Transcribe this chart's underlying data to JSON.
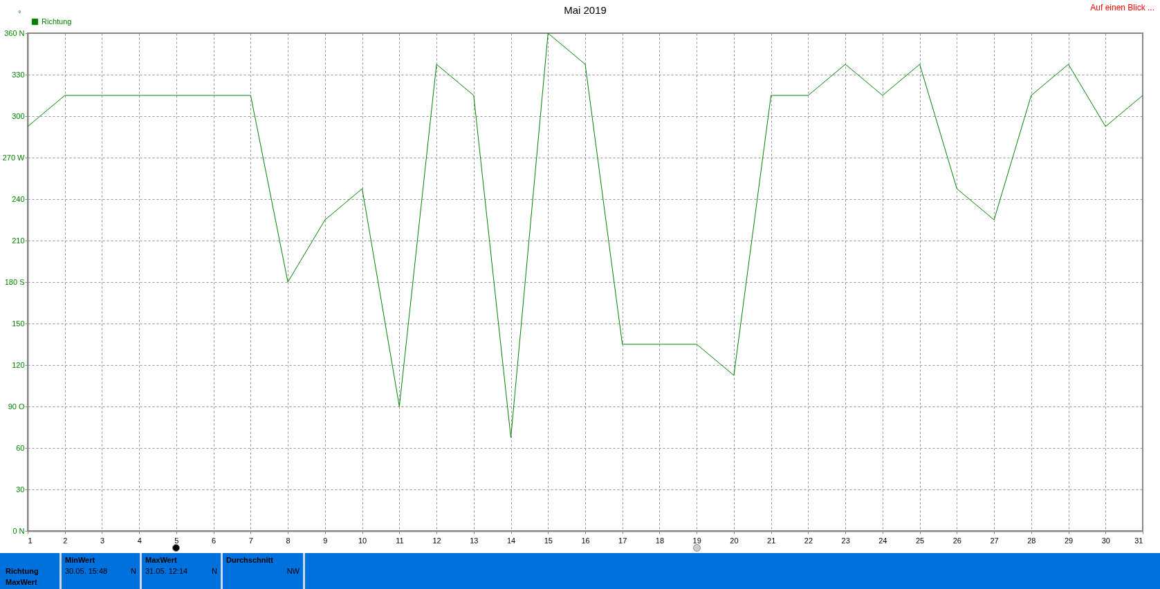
{
  "chart_data": {
    "type": "line",
    "title": "Mai 2019",
    "ylabel": "°",
    "x": [
      1,
      2,
      3,
      4,
      5,
      6,
      7,
      8,
      9,
      10,
      11,
      12,
      13,
      14,
      15,
      16,
      17,
      18,
      19,
      20,
      21,
      22,
      23,
      24,
      25,
      26,
      27,
      28,
      29,
      30,
      31
    ],
    "series": [
      {
        "name": "Richtung",
        "color": "#008000",
        "values": [
          292.5,
          315,
          315,
          315,
          315,
          315,
          315,
          180,
          225,
          247.5,
          90,
          337.5,
          315,
          67.5,
          360,
          337.5,
          135,
          135,
          135,
          112.5,
          315,
          315,
          337.5,
          315,
          337.5,
          247.5,
          225,
          315,
          337.5,
          292.5,
          315
        ]
      }
    ],
    "xlim": [
      1,
      31
    ],
    "xticks": [
      1,
      2,
      3,
      4,
      5,
      6,
      7,
      8,
      9,
      10,
      11,
      12,
      13,
      14,
      15,
      16,
      17,
      18,
      19,
      20,
      21,
      22,
      23,
      24,
      25,
      26,
      27,
      28,
      29,
      30,
      31
    ],
    "ylim": [
      0,
      360
    ],
    "yticks": [
      {
        "value": 0,
        "label": "0  N"
      },
      30,
      60,
      {
        "value": 90,
        "label": "90  O"
      },
      120,
      150,
      {
        "value": 180,
        "label": "180 S"
      },
      210,
      240,
      {
        "value": 270,
        "label": "270 W"
      },
      300,
      330,
      {
        "value": 360,
        "label": "360 N"
      }
    ],
    "grid": true,
    "legend": "top left",
    "marker": "none",
    "line_style": "solid",
    "annotations": [
      "Auf einen Blick ...",
      "Richtung",
      "MaxWert",
      "MinWert",
      "30.05.  15:48",
      "N",
      "MaxWert",
      "31.05.  12:14",
      "N",
      "Durchschnitt",
      "NW"
    ]
  }
}
